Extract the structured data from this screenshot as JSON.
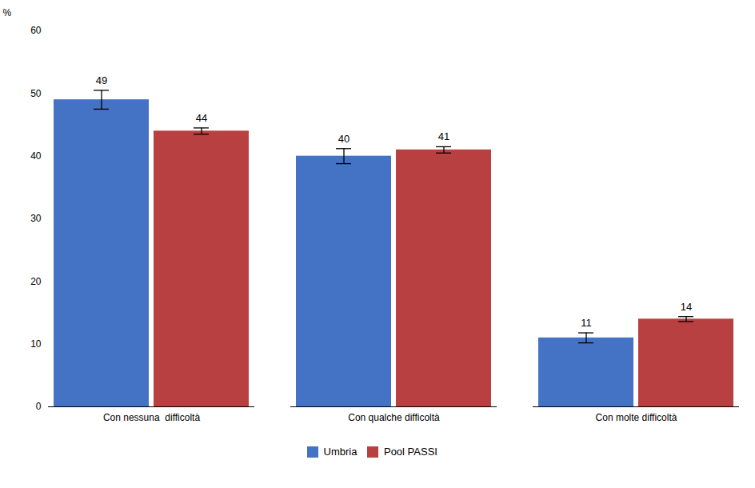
{
  "chart_data": {
    "type": "bar",
    "categories": [
      "Con nessuna  difficoltà",
      "Con qualche difficoltà",
      "Con molte difficoltà"
    ],
    "series": [
      {
        "name": "Umbria",
        "color": "#4472C4",
        "values": [
          49,
          40,
          11
        ],
        "errors": [
          1.5,
          1.2,
          0.8
        ]
      },
      {
        "name": "Pool PASSI",
        "color": "#B94040",
        "values": [
          44,
          41,
          14
        ],
        "errors": [
          0.5,
          0.5,
          0.4
        ]
      }
    ],
    "ylabel": "%",
    "ylim": [
      0,
      60
    ],
    "yticks": [
      0,
      10,
      20,
      30,
      40,
      50,
      60
    ],
    "grid": false,
    "data_labels": true,
    "legend": "bottom"
  }
}
